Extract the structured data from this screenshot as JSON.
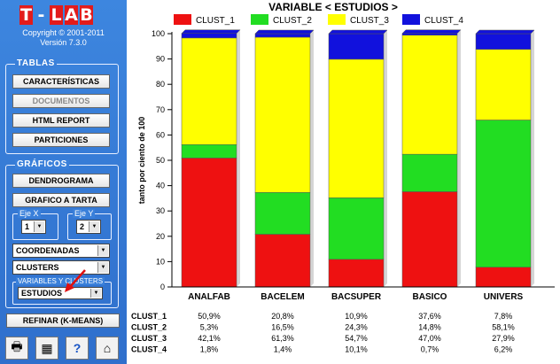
{
  "app": {
    "logo_letters": [
      "T",
      "-",
      "L",
      "A",
      "B"
    ],
    "copyright": "Copyright © 2001-2011",
    "version": "Versión 7.3.0"
  },
  "tablas": {
    "title": "TABLAS",
    "buttons": [
      "CARACTERÍSTICAS",
      "DOCUMENTOS",
      "HTML REPORT",
      "PARTICIONES"
    ]
  },
  "graficos": {
    "title": "GRÁFICOS",
    "buttons": [
      "DENDROGRAMA",
      "GRAFICO A TARTA"
    ],
    "eje_x": {
      "label": "Eje X",
      "value": "1"
    },
    "eje_y": {
      "label": "Eje Y",
      "value": "2"
    },
    "select1": "COORDENADAS",
    "select2": "CLUSTERS",
    "variables_title": "VARIABLES Y CLUSTERS",
    "variable_select": "ESTUDIOS"
  },
  "refinar_button": "REFINAR (K-MEANS)",
  "bottom_icons": [
    "printer-icon",
    "table-icon",
    "help-icon",
    "home-icon"
  ],
  "colors": {
    "CLUST_1": "#ee1111",
    "CLUST_2": "#22dd22",
    "CLUST_3": "#ffff00",
    "CLUST_4": "#1111dd"
  },
  "chart_data": {
    "type": "bar",
    "stacked": true,
    "title": "VARIABLE < ESTUDIOS >",
    "ylabel": "tanto por ciento de 100",
    "ylim": [
      0,
      100
    ],
    "yticks": [
      0,
      10,
      20,
      30,
      40,
      50,
      60,
      70,
      80,
      90,
      100
    ],
    "legend_placement": "top",
    "categories": [
      "ANALFAB",
      "BACELEM",
      "BACSUPER",
      "BASICO",
      "UNIVERS"
    ],
    "series": [
      {
        "name": "CLUST_1",
        "values": [
          50.9,
          20.8,
          10.9,
          37.6,
          7.8
        ],
        "labels": [
          "50,9%",
          "20,8%",
          "10,9%",
          "37,6%",
          "7,8%"
        ]
      },
      {
        "name": "CLUST_2",
        "values": [
          5.3,
          16.5,
          24.3,
          14.8,
          58.1
        ],
        "labels": [
          "5,3%",
          "16,5%",
          "24,3%",
          "14,8%",
          "58,1%"
        ]
      },
      {
        "name": "CLUST_3",
        "values": [
          42.1,
          61.3,
          54.7,
          47.0,
          27.9
        ],
        "labels": [
          "42,1%",
          "61,3%",
          "54,7%",
          "47,0%",
          "27,9%"
        ]
      },
      {
        "name": "CLUST_4",
        "values": [
          1.8,
          1.4,
          10.1,
          0.7,
          6.2
        ],
        "labels": [
          "1,8%",
          "1,4%",
          "10,1%",
          "0,7%",
          "6,2%"
        ]
      }
    ]
  }
}
